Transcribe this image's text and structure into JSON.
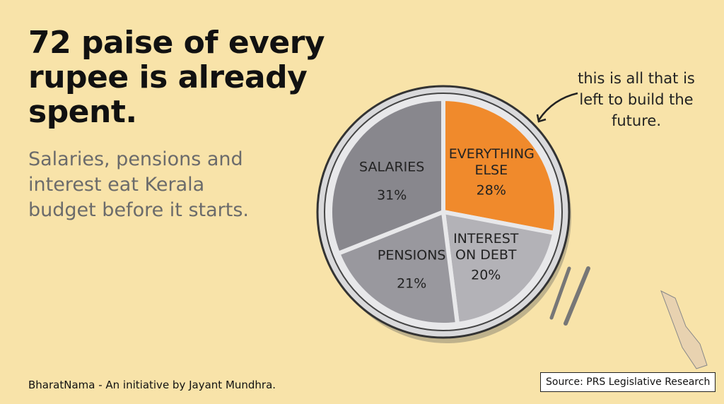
{
  "chart_data": {
    "type": "pie",
    "title": "72 paise of every rupee is already spent.",
    "subtitle": "Salaries, pensions and interest eat Kerala budget before it starts.",
    "annotation": "this is all that is left to build the future.",
    "categories": [
      "EVERYTHING ELSE",
      "INTEREST ON DEBT",
      "PENSIONS",
      "SALARIES"
    ],
    "values": [
      28,
      20,
      21,
      31
    ],
    "value_labels": [
      "28%",
      "20%",
      "21%",
      "31%"
    ],
    "colors": [
      "#f08a2c",
      "#b3b2b7",
      "#99989e",
      "#88878d"
    ],
    "source": "Source: PRS Legislative Research",
    "credit": "BharatNama - An initiative by Jayant Mundhra."
  }
}
